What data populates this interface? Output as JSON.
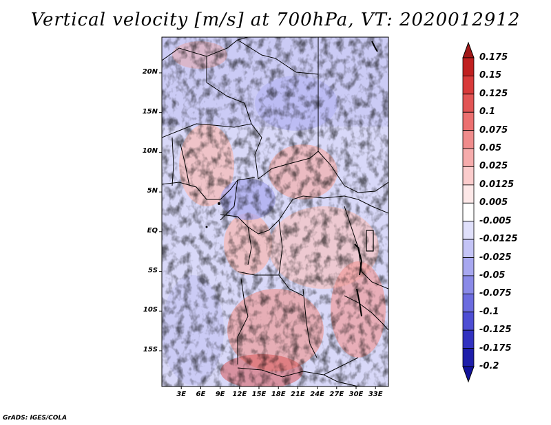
{
  "title": "Vertical velocity [m/s] at 700hPa, VT: 2020012912",
  "credit": "GrADS: IGES/COLA",
  "map": {
    "lat_range": [
      -19.5,
      24.5
    ],
    "lon_range": [
      0,
      35
    ],
    "lat_labels": [
      "20N",
      "15N",
      "10N",
      "5N",
      "EQ",
      "5S",
      "10S",
      "15S"
    ],
    "lat_values": [
      20,
      15,
      10,
      5,
      0,
      -5,
      -10,
      -15
    ],
    "lon_labels": [
      "3E",
      "6E",
      "9E",
      "12E",
      "15E",
      "18E",
      "21E",
      "24E",
      "27E",
      "30E",
      "33E"
    ],
    "lon_values": [
      3,
      6,
      9,
      12,
      15,
      18,
      21,
      24,
      27,
      30,
      33
    ]
  },
  "colorbar": {
    "labels": [
      "0.175",
      "0.15",
      "0.125",
      "0.1",
      "0.075",
      "0.05",
      "0.025",
      "0.0125",
      "0.005",
      "-0.005",
      "-0.0125",
      "-0.025",
      "-0.05",
      "-0.075",
      "-0.1",
      "-0.125",
      "-0.175",
      "-0.2"
    ],
    "colors": [
      "#a01818",
      "#c02020",
      "#d83a3a",
      "#e25555",
      "#ec7070",
      "#f08c8c",
      "#f6acac",
      "#fbcccc",
      "#fde8e8",
      "#ffffff",
      "#e0e0fb",
      "#c4c4f6",
      "#a8a8f0",
      "#8a8ae8",
      "#6c6cdf",
      "#4e4ed4",
      "#3232c0",
      "#1e1eaa",
      "#12129a"
    ]
  }
}
